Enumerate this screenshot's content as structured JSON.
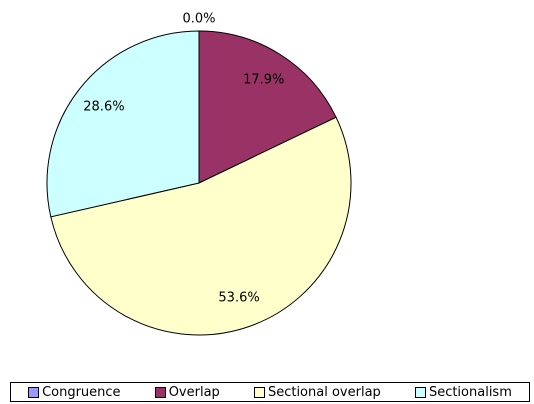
{
  "chart_data": {
    "type": "pie",
    "series": [
      {
        "name": "Congruence",
        "color": "#9999ff"
      },
      {
        "name": "Overlap",
        "color": "#993366"
      },
      {
        "name": "Sectional overlap",
        "color": "#ffffcc"
      },
      {
        "name": "Sectionalism",
        "color": "#ccffff"
      }
    ],
    "values": [
      0,
      17.9,
      53.6,
      28.6
    ],
    "value_labels": [
      "0.0%",
      "17.9%",
      "53.6%",
      "28.6%"
    ],
    "legend": "bottom"
  }
}
